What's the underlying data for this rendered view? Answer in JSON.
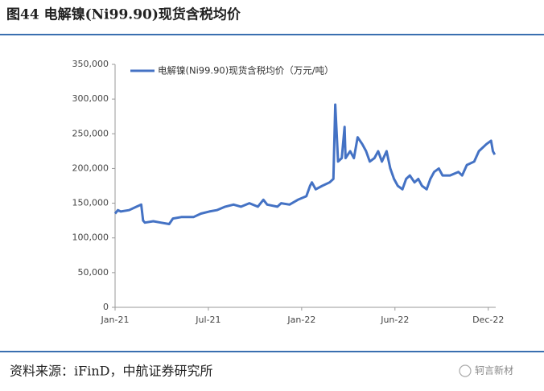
{
  "chart_data": {
    "type": "line",
    "title": "图44  电解镍(Ni99.90)现货含税均价",
    "source": "资料来源：iFinD，中航证券研究所",
    "watermark": "轲言新材",
    "xlim": [
      0,
      408
    ],
    "xticks": [
      {
        "value": 0,
        "label": "Jan-21"
      },
      {
        "value": 100,
        "label": "Jul-21"
      },
      {
        "value": 200,
        "label": "Jan-22"
      },
      {
        "value": 300,
        "label": "Jun-22"
      },
      {
        "value": 400,
        "label": "Dec-22"
      }
    ],
    "ylim": [
      0,
      350000
    ],
    "yticks": [
      0,
      {
        "value": 50000,
        "label": "50,000"
      },
      {
        "value": 100000,
        "label": "100,000"
      },
      {
        "value": 150000,
        "label": "150,000"
      },
      {
        "value": 200000,
        "label": "200,000"
      },
      {
        "value": 250000,
        "label": "250,000"
      },
      {
        "value": 300000,
        "label": "300,000"
      },
      {
        "value": 350000,
        "label": "350,000"
      }
    ],
    "legend": "top-left",
    "x": [
      0,
      3,
      6,
      15,
      23,
      28,
      30,
      32,
      41,
      49,
      58,
      62,
      71,
      84,
      92,
      101,
      109,
      118,
      127,
      135,
      144,
      153,
      159,
      163,
      174,
      178,
      187,
      196,
      205,
      209,
      211,
      215,
      222,
      230,
      234,
      236,
      239,
      243,
      246,
      247,
      252,
      256,
      260,
      265,
      269,
      273,
      278,
      282,
      286,
      291,
      295,
      299,
      303,
      308,
      312,
      316,
      321,
      325,
      329,
      334,
      338,
      342,
      347,
      351,
      359,
      368,
      372,
      377,
      385,
      390,
      394,
      398,
      403,
      405,
      407
    ],
    "series": [
      {
        "name": "电解镍(Ni99.90)现货含税均价（万元/吨）",
        "color": "#4472c4",
        "values": [
          135000,
          140000,
          138000,
          140000,
          145000,
          148000,
          125000,
          122000,
          124000,
          122000,
          120000,
          128000,
          130000,
          130000,
          135000,
          138000,
          140000,
          145000,
          148000,
          145000,
          150000,
          145000,
          155000,
          148000,
          145000,
          150000,
          148000,
          155000,
          160000,
          175000,
          180000,
          170000,
          175000,
          180000,
          185000,
          292000,
          210000,
          215000,
          260000,
          215000,
          225000,
          215000,
          245000,
          235000,
          225000,
          210000,
          215000,
          225000,
          210000,
          225000,
          200000,
          185000,
          175000,
          170000,
          185000,
          190000,
          180000,
          185000,
          175000,
          170000,
          185000,
          195000,
          200000,
          190000,
          190000,
          195000,
          190000,
          205000,
          210000,
          225000,
          230000,
          235000,
          240000,
          225000,
          220000
        ]
      }
    ]
  }
}
